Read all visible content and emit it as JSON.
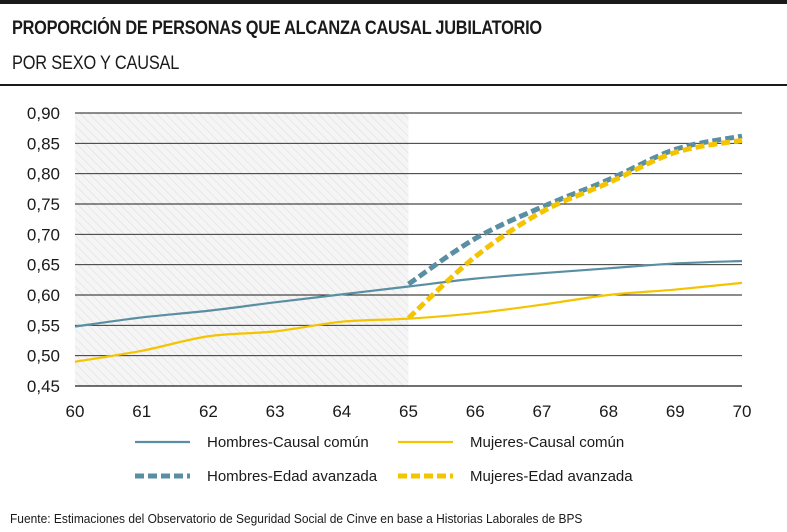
{
  "header": {
    "title": "PROPORCIÓN DE PERSONAS QUE ALCANZA CAUSAL JUBILATORIO",
    "subtitle": "POR SEXO Y CAUSAL"
  },
  "source": "Fuente: Estimaciones del Observatorio de Seguridad Social de Cinve en base a Historias Laborales de BPS",
  "chart_data": {
    "type": "line",
    "title": "PROPORCIÓN DE PERSONAS QUE ALCANZA CAUSAL JUBILATORIO",
    "subtitle": "POR SEXO Y CAUSAL",
    "xlabel": "",
    "ylabel": "",
    "xlim": [
      60,
      70
    ],
    "ylim": [
      0.45,
      0.9
    ],
    "xticks": [
      60,
      61,
      62,
      63,
      64,
      65,
      66,
      67,
      68,
      69,
      70
    ],
    "yticks": [
      0.45,
      0.5,
      0.55,
      0.6,
      0.65,
      0.7,
      0.75,
      0.8,
      0.85,
      0.9
    ],
    "ytick_labels": [
      "0,45",
      "0,50",
      "0,55",
      "0,60",
      "0,65",
      "0,70",
      "0,75",
      "0,80",
      "0,85",
      "0,90"
    ],
    "grid": "horizontal",
    "shaded_region": {
      "x_from": 60,
      "x_to": 65,
      "pattern": "diagonal-hatch"
    },
    "legend_position": "bottom",
    "series": [
      {
        "name": "Hombres-Causal común",
        "color": "#5a8fa3",
        "style": "solid",
        "x": [
          60,
          61,
          62,
          63,
          64,
          65,
          66,
          67,
          68,
          69,
          70
        ],
        "values": [
          0.548,
          0.563,
          0.574,
          0.588,
          0.601,
          0.614,
          0.627,
          0.636,
          0.644,
          0.652,
          0.656
        ]
      },
      {
        "name": "Mujeres-Causal común",
        "color": "#f5c400",
        "style": "solid",
        "x": [
          60,
          61,
          62,
          63,
          64,
          65,
          66,
          67,
          68,
          69,
          70
        ],
        "values": [
          0.49,
          0.508,
          0.532,
          0.54,
          0.556,
          0.561,
          0.57,
          0.584,
          0.6,
          0.609,
          0.62
        ]
      },
      {
        "name": "Hombres-Edad avanzada",
        "color": "#5a8fa3",
        "style": "dashed",
        "x": [
          65,
          66,
          67,
          68,
          69,
          70
        ],
        "values": [
          0.618,
          0.693,
          0.745,
          0.79,
          0.84,
          0.862
        ]
      },
      {
        "name": "Mujeres-Edad avanzada",
        "color": "#f5c400",
        "style": "dashed",
        "x": [
          65,
          66,
          67,
          68,
          69,
          70
        ],
        "values": [
          0.562,
          0.663,
          0.737,
          0.785,
          0.835,
          0.855
        ]
      }
    ]
  }
}
